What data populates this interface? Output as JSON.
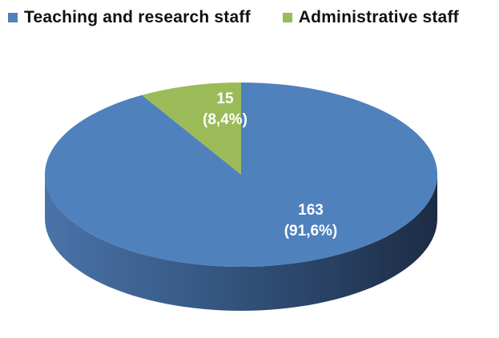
{
  "chart_data": {
    "type": "pie",
    "style": "3d",
    "categories": [
      "Teaching and research staff",
      "Administrative staff"
    ],
    "values": [
      163,
      15
    ],
    "percent_labels": [
      "(91,6%)",
      "(8,4%)"
    ],
    "colors": [
      "#4F81BD",
      "#9BBB59"
    ],
    "legend_position": "top",
    "title": ""
  }
}
